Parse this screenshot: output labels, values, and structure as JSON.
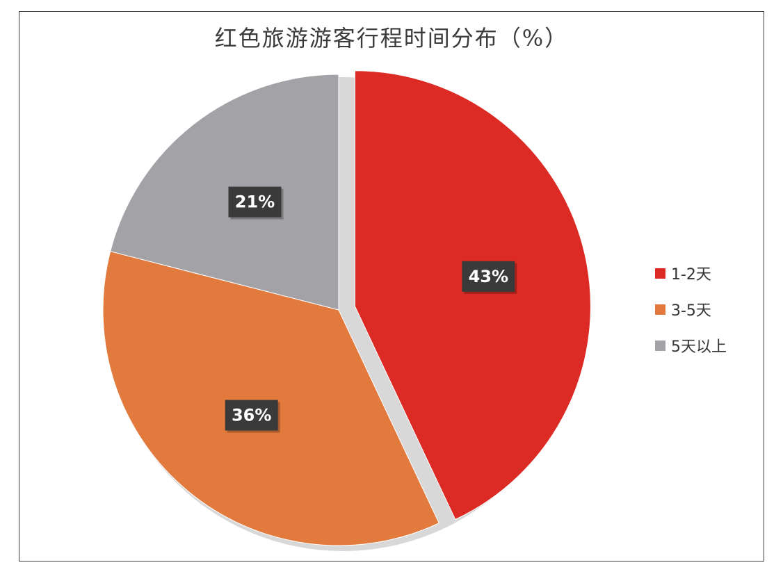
{
  "chart_data": {
    "type": "pie",
    "title": "红色旅游游客行程时间分布（%）",
    "categories": [
      "1-2天",
      "3-5天",
      "5天以上"
    ],
    "values": [
      43,
      36,
      21
    ],
    "value_labels": [
      "43%",
      "36%",
      "21%"
    ],
    "colors": [
      "#dc2a24",
      "#e27a3e",
      "#a3a3a7"
    ],
    "exploded": [
      "1-2天"
    ],
    "legend_position": "right"
  }
}
